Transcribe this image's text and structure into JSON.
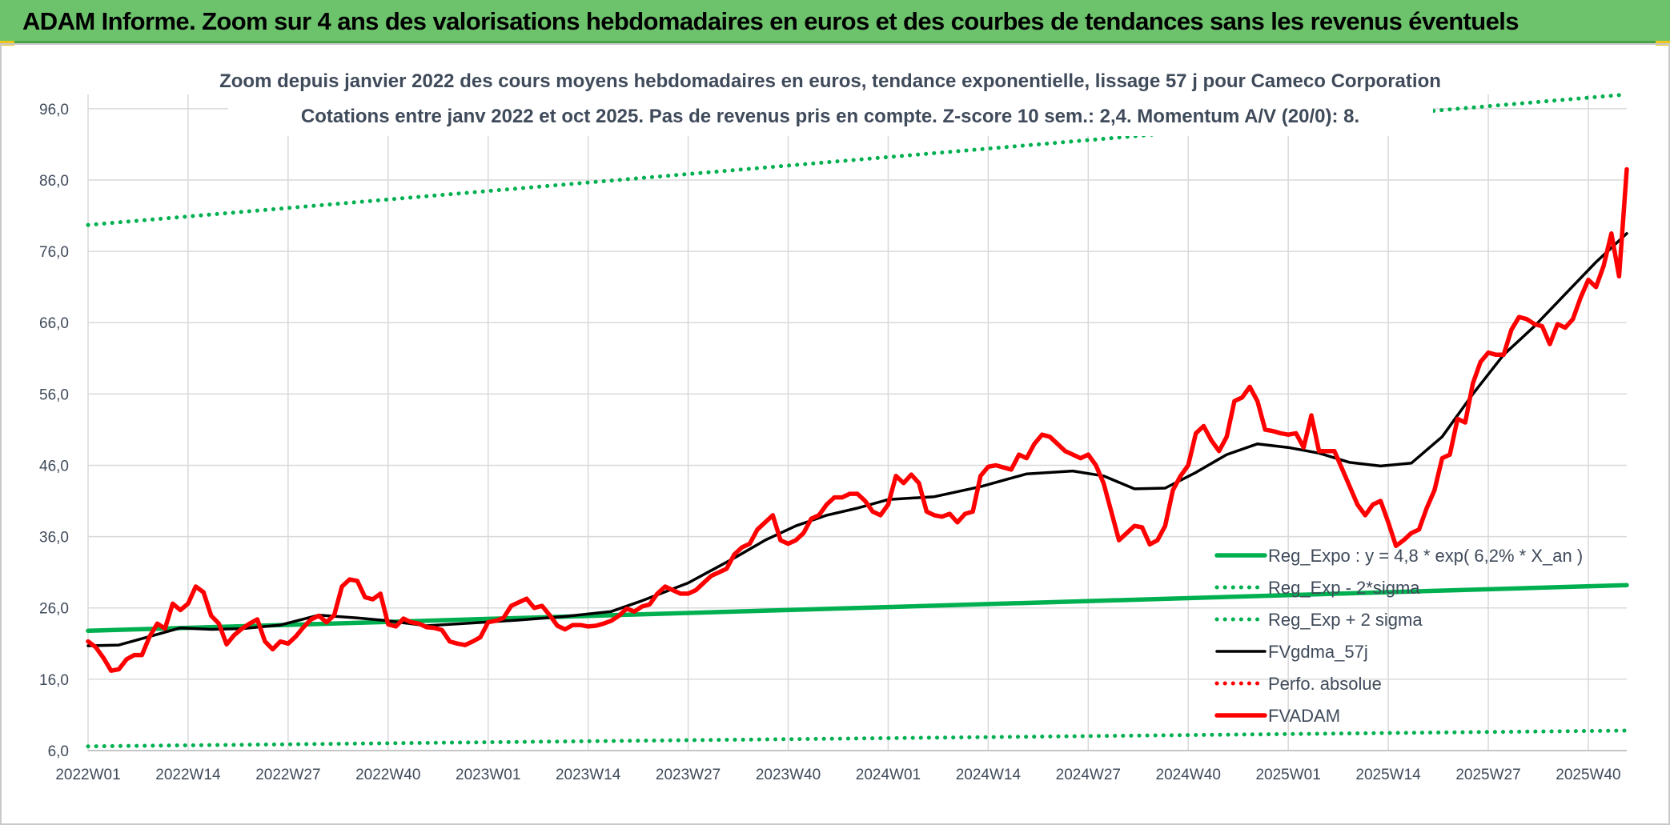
{
  "banner": {
    "title": "ADAM Informe. Zoom sur 4 ans des valorisations hebdomadaires en euros et des courbes de tendances sans les revenus éventuels"
  },
  "chart_data": {
    "type": "line",
    "title": "Zoom depuis janvier 2022 des cours moyens hebdomadaires en euros, tendance exponentielle, lissage 57 j pour Cameco Corporation",
    "subtitle": "Cotations entre janv 2022 et oct 2025. Pas de revenus pris en compte. Z-score 10 sem.: 2,4. Momentum A/V (20/0): 8.",
    "xlabel": "",
    "ylabel": "",
    "ylim": [
      6.0,
      98.0
    ],
    "y_ticks": [
      "6,0",
      "16,0",
      "26,0",
      "36,0",
      "46,0",
      "56,0",
      "66,0",
      "76,0",
      "86,0",
      "96,0"
    ],
    "y_tick_values": [
      6,
      16,
      26,
      36,
      46,
      56,
      66,
      76,
      86,
      96
    ],
    "x_ticks": [
      "2022W01",
      "2022W14",
      "2022W27",
      "2022W40",
      "2023W01",
      "2023W14",
      "2023W27",
      "2023W40",
      "2024W01",
      "2024W14",
      "2024W27",
      "2024W40",
      "2025W01",
      "2025W14",
      "2025W27",
      "2025W40"
    ],
    "x_tick_weeks": [
      0,
      13,
      26,
      39,
      52,
      65,
      78,
      91,
      104,
      117,
      130,
      143,
      156,
      169,
      182,
      195
    ],
    "x_range_weeks": [
      0,
      200
    ],
    "grid": true,
    "legend_position": "bottom-right",
    "series": [
      {
        "name": "Reg_Expo : y = 4,8 * exp( 6,2% *  X_an )",
        "color": "#00b050",
        "style": "solid",
        "x": [
          0,
          200
        ],
        "values": [
          22.8,
          29.2
        ]
      },
      {
        "name": "Reg_Exp - 2*sigma",
        "color": "#00b050",
        "style": "dotted",
        "x": [
          0,
          200
        ],
        "values": [
          6.6,
          8.8
        ]
      },
      {
        "name": "Reg_Exp + 2 sigma",
        "color": "#00b050",
        "style": "dotted",
        "x": [
          0,
          200
        ],
        "values": [
          79.7,
          98.0
        ]
      },
      {
        "name": "FVgdma_57j",
        "color": "#000000",
        "style": "solid",
        "x": [
          0,
          4,
          8,
          12,
          16,
          20,
          25,
          30,
          35,
          39,
          44,
          50,
          56,
          62,
          68,
          72,
          78,
          84,
          88,
          92,
          96,
          100,
          104,
          110,
          116,
          122,
          128,
          132,
          136,
          140,
          144,
          148,
          152,
          156,
          160,
          164,
          168,
          172,
          176,
          180,
          184,
          188,
          192,
          196,
          200
        ],
        "values": [
          20.7,
          20.8,
          22.0,
          23.2,
          23.0,
          23.1,
          23.6,
          25.0,
          24.6,
          24.2,
          23.5,
          23.9,
          24.3,
          24.8,
          25.5,
          27.0,
          29.5,
          33.0,
          35.5,
          37.5,
          39.0,
          40.0,
          41.2,
          41.6,
          43.0,
          44.8,
          45.2,
          44.5,
          42.7,
          42.8,
          45.0,
          47.5,
          49.0,
          48.5,
          47.7,
          46.4,
          45.9,
          46.3,
          50.0,
          56.0,
          61.5,
          65.5,
          70.0,
          74.5,
          78.5
        ]
      },
      {
        "name": "Perfo. absolue",
        "color": "#ff0000",
        "style": "dotted",
        "x": [],
        "values": []
      },
      {
        "name": "FVADAM",
        "color": "#ff0000",
        "style": "solid",
        "x": [
          0,
          1,
          2,
          3,
          4,
          5,
          6,
          7,
          8,
          9,
          10,
          11,
          12,
          13,
          14,
          15,
          16,
          17,
          18,
          19,
          20,
          21,
          22,
          23,
          24,
          25,
          26,
          27,
          28,
          29,
          30,
          31,
          32,
          33,
          34,
          35,
          36,
          37,
          38,
          39,
          40,
          41,
          42,
          43,
          44,
          45,
          46,
          47,
          48,
          49,
          50,
          51,
          52,
          53,
          54,
          55,
          56,
          57,
          58,
          59,
          60,
          61,
          62,
          63,
          64,
          65,
          66,
          67,
          68,
          69,
          70,
          71,
          72,
          73,
          74,
          75,
          76,
          77,
          78,
          79,
          80,
          81,
          82,
          83,
          84,
          85,
          86,
          87,
          88,
          89,
          90,
          91,
          92,
          93,
          94,
          95,
          96,
          97,
          98,
          99,
          100,
          101,
          102,
          103,
          104,
          105,
          106,
          107,
          108,
          109,
          110,
          111,
          112,
          113,
          114,
          115,
          116,
          117,
          118,
          119,
          120,
          121,
          122,
          123,
          124,
          125,
          126,
          127,
          128,
          129,
          130,
          131,
          132,
          133,
          134,
          135,
          136,
          137,
          138,
          139,
          140,
          141,
          142,
          143,
          144,
          145,
          146,
          147,
          148,
          149,
          150,
          151,
          152,
          153,
          154,
          155,
          156,
          157,
          158,
          159,
          160,
          161,
          162,
          163,
          164,
          165,
          166,
          167,
          168,
          169,
          170,
          171,
          172,
          173,
          174,
          175,
          176,
          177,
          178,
          179,
          180,
          181,
          182,
          183,
          184,
          185,
          186,
          187,
          188,
          189,
          190,
          191,
          192,
          193,
          194,
          195,
          196,
          197,
          198,
          199,
          200
        ],
        "values": [
          21.3,
          20.5,
          19.0,
          17.2,
          17.4,
          18.8,
          19.4,
          19.4,
          22.0,
          23.8,
          23.1,
          26.6,
          25.7,
          26.6,
          29.0,
          28.2,
          24.9,
          23.8,
          20.9,
          22.2,
          23.1,
          23.8,
          24.4,
          21.3,
          20.2,
          21.3,
          21.0,
          22.0,
          23.3,
          24.4,
          24.9,
          24.0,
          25.0,
          29.0,
          30.0,
          29.8,
          27.5,
          27.2,
          28.0,
          23.7,
          23.4,
          24.5,
          24.0,
          23.8,
          23.3,
          23.2,
          22.9,
          21.3,
          21.0,
          20.8,
          21.3,
          21.9,
          24.0,
          24.2,
          24.6,
          26.3,
          26.8,
          27.3,
          26.0,
          26.3,
          25.0,
          23.5,
          23.0,
          23.6,
          23.6,
          23.4,
          23.5,
          23.8,
          24.2,
          24.9,
          25.9,
          25.5,
          26.2,
          26.5,
          28.0,
          29.0,
          28.5,
          28.0,
          28.0,
          28.5,
          29.5,
          30.5,
          31.0,
          31.5,
          33.5,
          34.5,
          35.0,
          37.0,
          38.0,
          39.0,
          35.5,
          35.0,
          35.5,
          36.5,
          38.5,
          39.0,
          40.5,
          41.5,
          41.5,
          42.0,
          42.0,
          41.0,
          39.5,
          39.0,
          40.5,
          44.5,
          43.5,
          44.7,
          43.5,
          39.5,
          39.0,
          38.8,
          39.2,
          38.0,
          39.2,
          39.5,
          44.5,
          45.8,
          46.0,
          45.7,
          45.4,
          47.5,
          47.0,
          49.0,
          50.3,
          50.0,
          49.0,
          48.0,
          47.5,
          47.0,
          47.5,
          46.0,
          43.5,
          39.5,
          35.5,
          36.5,
          37.5,
          37.3,
          34.9,
          35.5,
          37.5,
          42.5,
          44.5,
          46.0,
          50.5,
          51.5,
          49.5,
          48.0,
          50.0,
          55.0,
          55.5,
          57.0,
          55.0,
          51.0,
          50.8,
          50.5,
          50.3,
          50.5,
          48.5,
          53.0,
          48.0,
          48.0,
          48.0,
          45.5,
          43.0,
          40.5,
          39.0,
          40.5,
          41.0,
          38.0,
          34.7,
          35.5,
          36.5,
          37.0,
          40.0,
          42.5,
          47.0,
          47.5,
          52.5,
          52.0,
          57.5,
          60.5,
          61.8,
          61.5,
          61.5,
          65.0,
          66.8,
          66.5,
          65.8,
          65.5,
          63.0,
          65.8,
          65.3,
          66.5,
          69.5,
          72.0,
          71.0,
          74.0,
          78.5,
          72.5,
          87.5
        ]
      }
    ]
  }
}
